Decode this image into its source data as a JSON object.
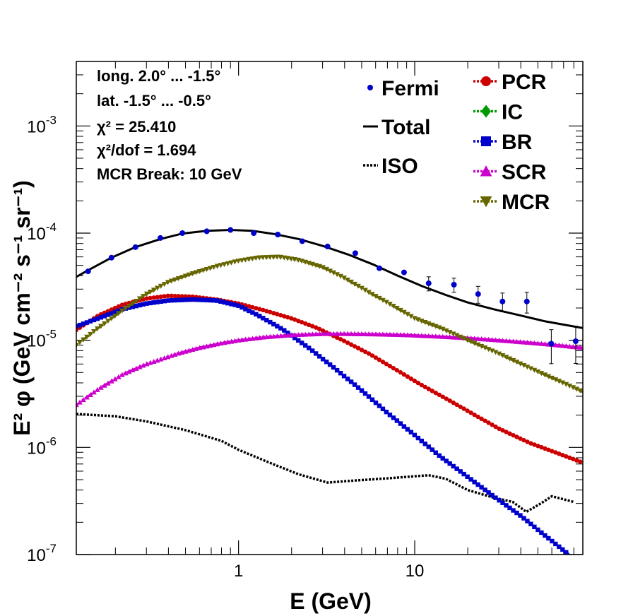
{
  "chart_data": {
    "type": "line",
    "xlabel": "E (GeV)",
    "ylabel": "E² φ (GeV cm⁻² s⁻¹ sr⁻¹)",
    "xscale": "log",
    "yscale": "log",
    "xlim": [
      0.12,
      90
    ],
    "ylim": [
      1e-07,
      0.004
    ],
    "x_ticks": [
      {
        "value": 1,
        "label": "1"
      },
      {
        "value": 10,
        "label": "10"
      }
    ],
    "y_ticks": [
      {
        "value": 1e-07,
        "base": "10",
        "exp": "-7"
      },
      {
        "value": 1e-06,
        "base": "10",
        "exp": "-6"
      },
      {
        "value": 1e-05,
        "base": "10",
        "exp": "-5"
      },
      {
        "value": 0.0001,
        "base": "10",
        "exp": "-4"
      },
      {
        "value": 0.001,
        "base": "10",
        "exp": "-3"
      }
    ],
    "annotations": [
      "long. 2.0° ... -1.5°",
      "lat. -1.5° ... -0.5°",
      "χ² = 25.410",
      "χ²/dof = 1.694",
      "MCR Break: 10 GeV"
    ],
    "legend_position": "top-right",
    "fermi": {
      "name": "Fermi",
      "color": "#0000cc",
      "points": [
        {
          "x": 0.14,
          "y": 4.4e-05
        },
        {
          "x": 0.19,
          "y": 5.9e-05
        },
        {
          "x": 0.26,
          "y": 7.4e-05
        },
        {
          "x": 0.36,
          "y": 9e-05
        },
        {
          "x": 0.48,
          "y": 0.0001
        },
        {
          "x": 0.66,
          "y": 0.000104
        },
        {
          "x": 0.9,
          "y": 0.000107
        },
        {
          "x": 1.22,
          "y": 0.0001
        },
        {
          "x": 1.67,
          "y": 9.7e-05
        },
        {
          "x": 2.3,
          "y": 8.4e-05
        },
        {
          "x": 3.2,
          "y": 7.5e-05
        },
        {
          "x": 4.6,
          "y": 6.5e-05
        },
        {
          "x": 6.3,
          "y": 4.7e-05
        },
        {
          "x": 8.7,
          "y": 4.3e-05
        },
        {
          "x": 12,
          "y": 3.4e-05,
          "err": 0.15
        },
        {
          "x": 16.7,
          "y": 3.3e-05,
          "err": 0.15
        },
        {
          "x": 22.9,
          "y": 2.7e-05,
          "err": 0.18
        },
        {
          "x": 31.5,
          "y": 2.3e-05,
          "err": 0.2
        },
        {
          "x": 43.3,
          "y": 2.3e-05,
          "err": 0.22
        },
        {
          "x": 59.6,
          "y": 9.3e-06,
          "err": 0.35
        },
        {
          "x": 82,
          "y": 9.8e-06,
          "err": 0.38
        }
      ]
    },
    "series": [
      {
        "name": "Total",
        "color": "#000000",
        "style": "solid",
        "marker": "none",
        "x": [
          0.12,
          0.14,
          0.19,
          0.26,
          0.36,
          0.48,
          0.66,
          0.9,
          1.2,
          1.6,
          2.2,
          3.0,
          4.2,
          5.8,
          8.0,
          11,
          15,
          20,
          28,
          40,
          55,
          90
        ],
        "y": [
          3.9e-05,
          4.5e-05,
          5.9e-05,
          7.4e-05,
          8.8e-05,
          9.9e-05,
          0.000105,
          0.000107,
          0.000105,
          9.8e-05,
          8.8e-05,
          7.6e-05,
          6.3e-05,
          5.1e-05,
          4e-05,
          3.2e-05,
          2.65e-05,
          2.25e-05,
          1.95e-05,
          1.7e-05,
          1.5e-05,
          1.3e-05
        ]
      },
      {
        "name": "ISO",
        "color": "#000000",
        "style": "dotted",
        "marker": "none",
        "x": [
          0.12,
          0.2,
          0.3,
          0.5,
          0.8,
          1.0,
          1.5,
          2.2,
          3.2,
          4.5,
          6.5,
          9.0,
          12,
          15,
          20,
          28,
          36,
          43,
          52,
          60,
          80
        ],
        "y": [
          2.05e-06,
          1.95e-06,
          1.75e-06,
          1.45e-06,
          1.15e-06,
          9.5e-07,
          7.2e-07,
          5.6e-07,
          4.7e-07,
          4.9e-07,
          5.1e-07,
          5.3e-07,
          5.5e-07,
          5.1e-07,
          4e-07,
          3.4e-07,
          3.1e-07,
          2.5e-07,
          3e-07,
          3.5e-07,
          3.1e-07
        ]
      },
      {
        "name": "PCR",
        "color": "#cc0000",
        "style": "dotted",
        "marker": "circle",
        "x": [
          0.12,
          0.16,
          0.22,
          0.3,
          0.4,
          0.55,
          0.75,
          1.0,
          1.4,
          2.0,
          2.8,
          4.0,
          5.5,
          8.0,
          11,
          16,
          22,
          30,
          45,
          65,
          90
        ],
        "y": [
          1.25e-05,
          1.7e-05,
          2.15e-05,
          2.45e-05,
          2.6e-05,
          2.55e-05,
          2.4e-05,
          2.2e-05,
          1.9e-05,
          1.6e-05,
          1.3e-05,
          9.8e-06,
          7.5e-06,
          5.2e-06,
          3.8e-06,
          2.7e-06,
          2e-06,
          1.5e-06,
          1.1e-06,
          8.8e-07,
          7.2e-07
        ]
      },
      {
        "name": "IC",
        "color": "#009900",
        "style": "dotted",
        "marker": "diamond",
        "x": [],
        "y": []
      },
      {
        "name": "BR",
        "color": "#0000cc",
        "style": "dotted",
        "marker": "square",
        "x": [
          0.12,
          0.16,
          0.22,
          0.3,
          0.4,
          0.55,
          0.75,
          1.0,
          1.3,
          1.8,
          2.5,
          3.5,
          5.0,
          7.0,
          10,
          14,
          20,
          28,
          40,
          55,
          75
        ],
        "y": [
          1.35e-05,
          1.6e-05,
          1.95e-05,
          2.2e-05,
          2.35e-05,
          2.4e-05,
          2.35e-05,
          2.1e-05,
          1.7e-05,
          1.25e-05,
          8.5e-06,
          5.5e-06,
          3.4e-06,
          2.1e-06,
          1.3e-06,
          8.2e-07,
          5.3e-07,
          3.5e-07,
          2.3e-07,
          1.5e-07,
          1e-07
        ]
      },
      {
        "name": "SCR",
        "color": "#cc00cc",
        "style": "dotted",
        "marker": "triangle-up",
        "x": [
          0.12,
          0.16,
          0.22,
          0.3,
          0.45,
          0.6,
          0.8,
          1.0,
          1.4,
          2.0,
          3.0,
          4.0,
          6.0,
          9.0,
          13,
          20,
          30,
          45,
          65,
          90
        ],
        "y": [
          2.5e-06,
          3.5e-06,
          4.8e-06,
          6e-06,
          7.5e-06,
          8.5e-06,
          9.4e-06,
          1e-05,
          1.07e-05,
          1.12e-05,
          1.15e-05,
          1.15e-05,
          1.14e-05,
          1.12e-05,
          1.09e-05,
          1.05e-05,
          1e-05,
          9.5e-06,
          9e-06,
          8.5e-06
        ]
      },
      {
        "name": "MCR",
        "color": "#666600",
        "style": "dotted",
        "marker": "triangle-down",
        "x": [
          0.12,
          0.16,
          0.22,
          0.3,
          0.4,
          0.55,
          0.75,
          1.0,
          1.3,
          1.7,
          2.2,
          3.0,
          4.0,
          5.5,
          7.5,
          10,
          14,
          20,
          30,
          45,
          65,
          90
        ],
        "y": [
          9e-06,
          1.3e-05,
          1.9e-05,
          2.7e-05,
          3.5e-05,
          4.2e-05,
          4.9e-05,
          5.5e-05,
          5.9e-05,
          6e-05,
          5.6e-05,
          4.8e-05,
          3.8e-05,
          2.8e-05,
          2.1e-05,
          1.6e-05,
          1.3e-05,
          1e-05,
          7.5e-06,
          5.5e-06,
          4.2e-06,
          3.3e-06
        ]
      }
    ]
  }
}
